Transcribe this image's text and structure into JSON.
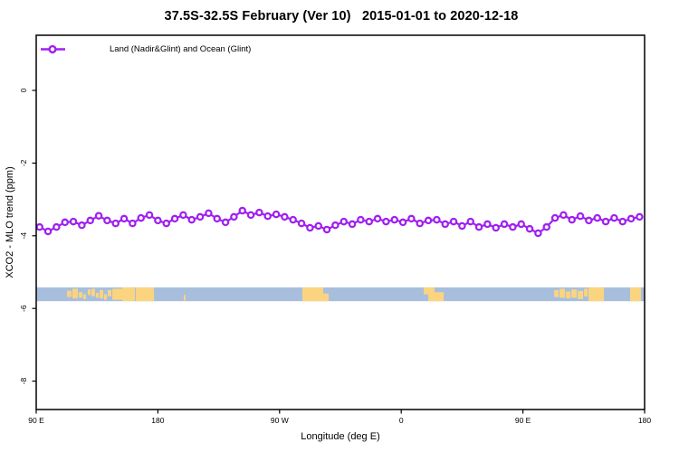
{
  "title": "37.5S-32.5S February (Ver 10)   2015-01-01 to 2020-12-18",
  "legend": {
    "label": "Land (Nadir&Glint) and Ocean (Glint)"
  },
  "axes": {
    "x": {
      "label": "Longitude (deg E)"
    },
    "y": {
      "label": "XCO2 - MLO trend (ppm)"
    }
  },
  "colors": {
    "series": "#A020F0",
    "marker_fill": "#FFFFFF",
    "ocean": "#A8BEDD",
    "land": "#FBD480",
    "axis": "#000000"
  },
  "chart_data": {
    "type": "line",
    "title": "37.5S-32.5S February (Ver 10)   2015-01-01 to 2020-12-18",
    "xlabel": "Longitude (deg E)",
    "ylabel": "XCO2 - MLO trend (ppm)",
    "legend_position": "top-left",
    "grid": false,
    "x_span_deg": 450,
    "x_ticks": [
      {
        "o": 0,
        "label": "90 E"
      },
      {
        "o": 90,
        "label": "180"
      },
      {
        "o": 180,
        "label": "90 W"
      },
      {
        "o": 270,
        "label": "0"
      },
      {
        "o": 360,
        "label": "90 E"
      },
      {
        "o": 450,
        "label": "180"
      }
    ],
    "y_ticks": [
      {
        "v": 0,
        "label": "0"
      },
      {
        "v": -2,
        "label": "-2"
      },
      {
        "v": -4,
        "label": "-4"
      },
      {
        "v": -6,
        "label": "-6"
      },
      {
        "v": -8,
        "label": "-8"
      }
    ],
    "ylim": [
      -8.8,
      1.5
    ],
    "series": [
      {
        "name": "Land (Nadir&Glint) and Ocean (Glint)",
        "marker": "open-circle",
        "color": "#A020F0",
        "points": [
          [
            2.5,
            -3.76
          ],
          [
            8.75,
            -3.88
          ],
          [
            15,
            -3.76
          ],
          [
            21.25,
            -3.63
          ],
          [
            27.5,
            -3.61
          ],
          [
            33.75,
            -3.71
          ],
          [
            40,
            -3.58
          ],
          [
            46.25,
            -3.45
          ],
          [
            52.5,
            -3.58
          ],
          [
            58.75,
            -3.66
          ],
          [
            65,
            -3.53
          ],
          [
            71.25,
            -3.66
          ],
          [
            77.5,
            -3.51
          ],
          [
            83.75,
            -3.43
          ],
          [
            90,
            -3.58
          ],
          [
            96.25,
            -3.66
          ],
          [
            102.5,
            -3.53
          ],
          [
            108.75,
            -3.43
          ],
          [
            115,
            -3.56
          ],
          [
            121.25,
            -3.48
          ],
          [
            127.5,
            -3.38
          ],
          [
            133.75,
            -3.53
          ],
          [
            140,
            -3.63
          ],
          [
            146.25,
            -3.48
          ],
          [
            152.5,
            -3.31
          ],
          [
            158.75,
            -3.43
          ],
          [
            165,
            -3.36
          ],
          [
            171.25,
            -3.46
          ],
          [
            177.5,
            -3.41
          ],
          [
            183.75,
            -3.48
          ],
          [
            190,
            -3.56
          ],
          [
            196.25,
            -3.66
          ],
          [
            202.5,
            -3.78
          ],
          [
            208.75,
            -3.73
          ],
          [
            215,
            -3.83
          ],
          [
            221.25,
            -3.71
          ],
          [
            227.5,
            -3.61
          ],
          [
            233.75,
            -3.68
          ],
          [
            240,
            -3.56
          ],
          [
            246.25,
            -3.61
          ],
          [
            252.5,
            -3.53
          ],
          [
            258.75,
            -3.61
          ],
          [
            265,
            -3.56
          ],
          [
            271.25,
            -3.63
          ],
          [
            277.5,
            -3.53
          ],
          [
            283.75,
            -3.66
          ],
          [
            290,
            -3.58
          ],
          [
            296.25,
            -3.56
          ],
          [
            302.5,
            -3.68
          ],
          [
            308.75,
            -3.61
          ],
          [
            315,
            -3.73
          ],
          [
            321.25,
            -3.61
          ],
          [
            327.5,
            -3.76
          ],
          [
            333.75,
            -3.68
          ],
          [
            340,
            -3.78
          ],
          [
            346.25,
            -3.68
          ],
          [
            352.5,
            -3.76
          ],
          [
            358.75,
            -3.68
          ],
          [
            365,
            -3.81
          ],
          [
            371.25,
            -3.93
          ],
          [
            377.5,
            -3.76
          ],
          [
            383.75,
            -3.51
          ],
          [
            390,
            -3.43
          ],
          [
            396.25,
            -3.56
          ],
          [
            402.5,
            -3.46
          ],
          [
            408.75,
            -3.58
          ],
          [
            415,
            -3.51
          ],
          [
            421.25,
            -3.61
          ],
          [
            427.5,
            -3.51
          ],
          [
            433.75,
            -3.61
          ],
          [
            440,
            -3.53
          ],
          [
            446.25,
            -3.48
          ]
        ]
      }
    ],
    "map_band": {
      "description": "coastline strip of latitude band 37.5S-32.5S (ocean blue, land tan)",
      "value_top": -5.42,
      "value_bottom": -5.8,
      "ocean_color": "#A8BEDD",
      "land_color": "#FBD480",
      "land_patches": [
        {
          "o": 22.8,
          "w": 3.3,
          "t": 0.25,
          "h": 0.45
        },
        {
          "o": 26.8,
          "w": 4.0,
          "t": 0.1,
          "h": 0.7
        },
        {
          "o": 31.5,
          "w": 2.7,
          "t": 0.35,
          "h": 0.4
        },
        {
          "o": 34.8,
          "w": 2.0,
          "t": 0.5,
          "h": 0.35
        },
        {
          "o": 38.2,
          "w": 2.0,
          "t": 0.15,
          "h": 0.4
        },
        {
          "o": 40.8,
          "w": 2.7,
          "t": 0.1,
          "h": 0.55
        },
        {
          "o": 44.2,
          "w": 2.0,
          "t": 0.4,
          "h": 0.35
        },
        {
          "o": 46.9,
          "w": 2.7,
          "t": 0.2,
          "h": 0.6
        },
        {
          "o": 50.2,
          "w": 2.0,
          "t": 0.5,
          "h": 0.4
        },
        {
          "o": 52.9,
          "w": 2.7,
          "t": 0.2,
          "h": 0.45
        },
        {
          "o": 56.3,
          "w": 8.7,
          "t": 0.1,
          "h": 0.8
        },
        {
          "o": 63.6,
          "w": 9.4,
          "t": 0.0,
          "h": 1.0
        },
        {
          "o": 73.7,
          "w": 13.4,
          "t": 0.0,
          "h": 1.0
        },
        {
          "o": 109.2,
          "w": 1.3,
          "t": 0.55,
          "h": 0.4
        },
        {
          "o": 196.9,
          "w": 15.4,
          "t": 0.0,
          "h": 1.0
        },
        {
          "o": 212.3,
          "w": 4.0,
          "t": 0.45,
          "h": 0.55
        },
        {
          "o": 286.6,
          "w": 8.0,
          "t": 0.0,
          "h": 0.5
        },
        {
          "o": 290.0,
          "w": 11.4,
          "t": 0.35,
          "h": 0.65
        },
        {
          "o": 383.1,
          "w": 3.3,
          "t": 0.2,
          "h": 0.5
        },
        {
          "o": 387.1,
          "w": 4.0,
          "t": 0.1,
          "h": 0.65
        },
        {
          "o": 391.8,
          "w": 3.3,
          "t": 0.3,
          "h": 0.5
        },
        {
          "o": 395.8,
          "w": 4.0,
          "t": 0.15,
          "h": 0.6
        },
        {
          "o": 400.5,
          "w": 4.0,
          "t": 0.25,
          "h": 0.6
        },
        {
          "o": 405.2,
          "w": 2.7,
          "t": 0.1,
          "h": 0.55
        },
        {
          "o": 408.5,
          "w": 11.4,
          "t": 0.0,
          "h": 1.0
        },
        {
          "o": 439.3,
          "w": 8.0,
          "t": 0.0,
          "h": 1.0
        }
      ]
    }
  }
}
